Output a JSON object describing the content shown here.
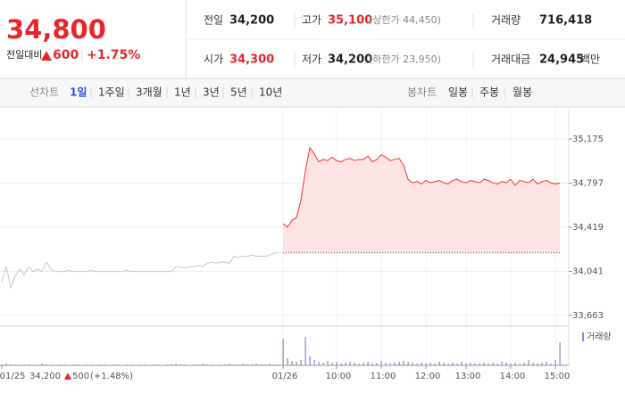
{
  "header": {
    "price": "34,800",
    "change_label": "전일대비",
    "change": "600",
    "change_pct": "+1.75%"
  },
  "stats": [
    {
      "label": "전일",
      "value": "34,200"
    },
    {
      "label": "고가",
      "value": "35,100",
      "note": "(상한가 44,450)"
    },
    {
      "label": "거래량",
      "value": "716,418"
    },
    {
      "label": "시가",
      "value": "34,300"
    },
    {
      "label": "저가",
      "value": "34,200",
      "note": "(하한가 23,950)"
    },
    {
      "label": "거래대금",
      "value": "24,945",
      "unit": "백만"
    }
  ],
  "tabs": {
    "line_label": "선차트",
    "line_tabs": [
      "1일",
      "1주일",
      "3개월",
      "1년",
      "3년",
      "5년",
      "10년"
    ],
    "candle_label": "봉차트",
    "candle_tabs": [
      "일봉",
      "주봉",
      "월봉"
    ]
  },
  "chart_data": {
    "type": "line",
    "categories": [
      "01/25",
      null,
      null,
      null,
      null,
      null,
      null,
      null,
      null,
      null,
      null,
      null,
      null,
      null,
      null,
      null,
      null,
      null,
      null,
      null,
      null,
      null,
      null,
      null,
      null,
      null,
      null,
      null,
      null,
      null,
      null,
      null,
      null,
      null,
      null,
      null,
      null,
      null,
      null,
      null,
      null,
      null,
      null,
      null,
      null,
      null,
      null,
      null,
      null,
      null,
      null,
      null,
      null,
      null,
      null,
      null,
      null,
      null,
      null,
      null,
      null,
      null,
      null,
      "01/26",
      null,
      null,
      null,
      null,
      null,
      null,
      null,
      null,
      null,
      null,
      null,
      "10:00",
      null,
      null,
      null,
      null,
      null,
      null,
      null,
      null,
      null,
      "11:00",
      null,
      null,
      null,
      null,
      null,
      null,
      null,
      null,
      null,
      "12:00",
      null,
      null,
      null,
      null,
      null,
      null,
      null,
      null,
      "13:00",
      null,
      null,
      null,
      null,
      null,
      null,
      null,
      null,
      null,
      "14:00",
      null,
      null,
      null,
      null,
      null,
      null,
      null,
      null,
      null,
      "15:00",
      null,
      null,
      null
    ],
    "series": [
      {
        "color": "#c8c8c8",
        "values": [
          33950,
          34080,
          33900,
          34000,
          34060,
          34010,
          34080,
          34040,
          34060,
          34040,
          34120,
          34060,
          34040,
          34040,
          34040,
          34050,
          34040,
          34040,
          34040,
          34040,
          34050,
          34040,
          34040,
          34040,
          34040,
          34040,
          34040,
          34040,
          34050,
          34040,
          34040,
          34040,
          34040,
          34040,
          34040,
          34040,
          34040,
          34040,
          34040,
          34080,
          34080,
          34070,
          34080,
          34080,
          34090,
          34080,
          34110,
          34120,
          34110,
          34120,
          34120,
          34110,
          34170,
          34160,
          34170,
          34170,
          34180,
          34170,
          34170,
          34170,
          34180,
          34200,
          34200,
          null,
          null,
          null,
          null,
          null,
          null,
          null,
          null,
          null,
          null,
          null,
          null,
          null,
          null,
          null,
          null,
          null,
          null,
          null,
          null,
          null,
          null,
          null,
          null,
          null,
          null,
          null,
          null,
          null,
          null,
          null,
          null,
          null,
          null,
          null,
          null,
          null,
          null,
          null,
          null,
          null,
          null,
          null,
          null,
          null,
          null,
          null,
          null,
          null,
          null,
          null,
          null,
          null,
          null,
          null,
          null,
          null,
          null,
          null,
          null,
          null,
          null,
          null,
          null,
          null
        ]
      },
      {
        "color": "#ee3333",
        "fill": "#fde3e3",
        "values": [
          null,
          null,
          null,
          null,
          null,
          null,
          null,
          null,
          null,
          null,
          null,
          null,
          null,
          null,
          null,
          null,
          null,
          null,
          null,
          null,
          null,
          null,
          null,
          null,
          null,
          null,
          null,
          null,
          null,
          null,
          null,
          null,
          null,
          null,
          null,
          null,
          null,
          null,
          null,
          null,
          null,
          null,
          null,
          null,
          null,
          null,
          null,
          null,
          null,
          null,
          null,
          null,
          null,
          null,
          null,
          null,
          null,
          null,
          null,
          null,
          null,
          null,
          null,
          34450,
          34420,
          34480,
          34500,
          34650,
          34900,
          35100,
          35050,
          34980,
          35000,
          34990,
          35020,
          34990,
          34980,
          35000,
          35010,
          34990,
          35000,
          35000,
          35030,
          34980,
          35000,
          35040,
          35020,
          34990,
          35000,
          35010,
          34950,
          34830,
          34800,
          34810,
          34790,
          34820,
          34800,
          34810,
          34820,
          34800,
          34790,
          34820,
          34830,
          34810,
          34800,
          34820,
          34810,
          34800,
          34830,
          34820,
          34800,
          34790,
          34810,
          34800,
          34830,
          34780,
          34820,
          34810,
          34800,
          34830,
          34790,
          34810,
          34820,
          34800,
          34790,
          34800,
          null,
          null
        ]
      },
      {
        "name": "거래량",
        "type": "bar",
        "axis": "y2",
        "color": "#8c82cf",
        "values": [
          1,
          2,
          1,
          1,
          0,
          1,
          1,
          0,
          1,
          2,
          1,
          1,
          0,
          1,
          1,
          0,
          1,
          1,
          0,
          1,
          1,
          0,
          1,
          1,
          0,
          1,
          1,
          0,
          1,
          1,
          0,
          1,
          1,
          0,
          1,
          1,
          0,
          1,
          1,
          2,
          1,
          1,
          0,
          1,
          1,
          2,
          1,
          1,
          0,
          1,
          1,
          2,
          1,
          1,
          2,
          1,
          1,
          2,
          1,
          1,
          2,
          1,
          1,
          30,
          8,
          5,
          4,
          6,
          32,
          10,
          6,
          4,
          3,
          5,
          3,
          4,
          2,
          3,
          4,
          3,
          2,
          3,
          4,
          2,
          3,
          5,
          3,
          2,
          3,
          4,
          5,
          4,
          3,
          2,
          3,
          2,
          3,
          2,
          4,
          3,
          2,
          3,
          2,
          4,
          2,
          3,
          2,
          2,
          3,
          2,
          3,
          2,
          4,
          3,
          2,
          3,
          2,
          3,
          6,
          3,
          2,
          3,
          4,
          2,
          6,
          26,
          null,
          null
        ]
      }
    ],
    "ylim": [
      33579,
      35435
    ],
    "yticks": [
      {
        "value": 33663,
        "label": "33,663"
      },
      {
        "value": 34041,
        "label": "34,041"
      },
      {
        "value": 34419,
        "label": "34,419"
      },
      {
        "value": 34797,
        "label": "34,797"
      },
      {
        "value": 35175,
        "label": "35,175"
      }
    ],
    "y2lim": [
      0,
      40
    ],
    "baseline": 34200,
    "grid": true,
    "annotation": {
      "value": "34,200",
      "change": "500",
      "change_pct": "(+1.48%)"
    }
  }
}
